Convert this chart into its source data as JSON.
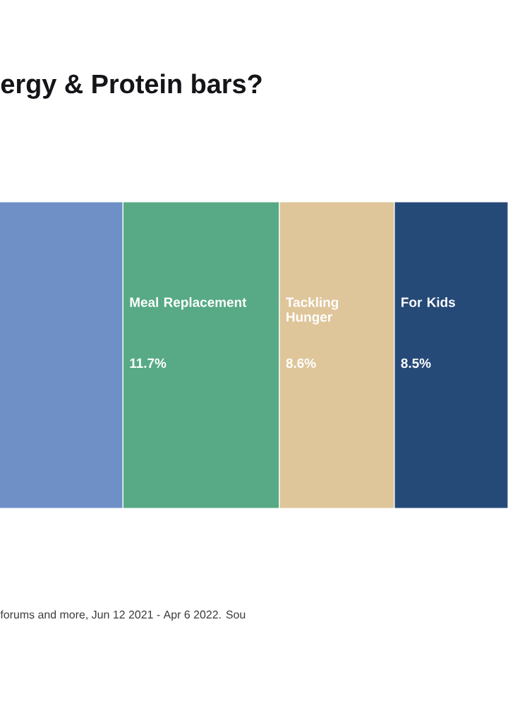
{
  "chart_data": {
    "type": "other",
    "title": "ergy & Protein bars?",
    "categories": [
      null,
      "Meal Replacement",
      "Tackling Hunger",
      "For Kids"
    ],
    "values": [
      null,
      11.7,
      8.6,
      8.5
    ],
    "value_labels": [
      null,
      "11.7%",
      "8.6%",
      "8.5%"
    ],
    "colors": [
      "#6f90c6",
      "#57aa85",
      "#dfc59a",
      "#264a78"
    ],
    "annotations": [
      "forums and more, Jun 12 2021 - Apr 6 2022. Sou"
    ]
  }
}
